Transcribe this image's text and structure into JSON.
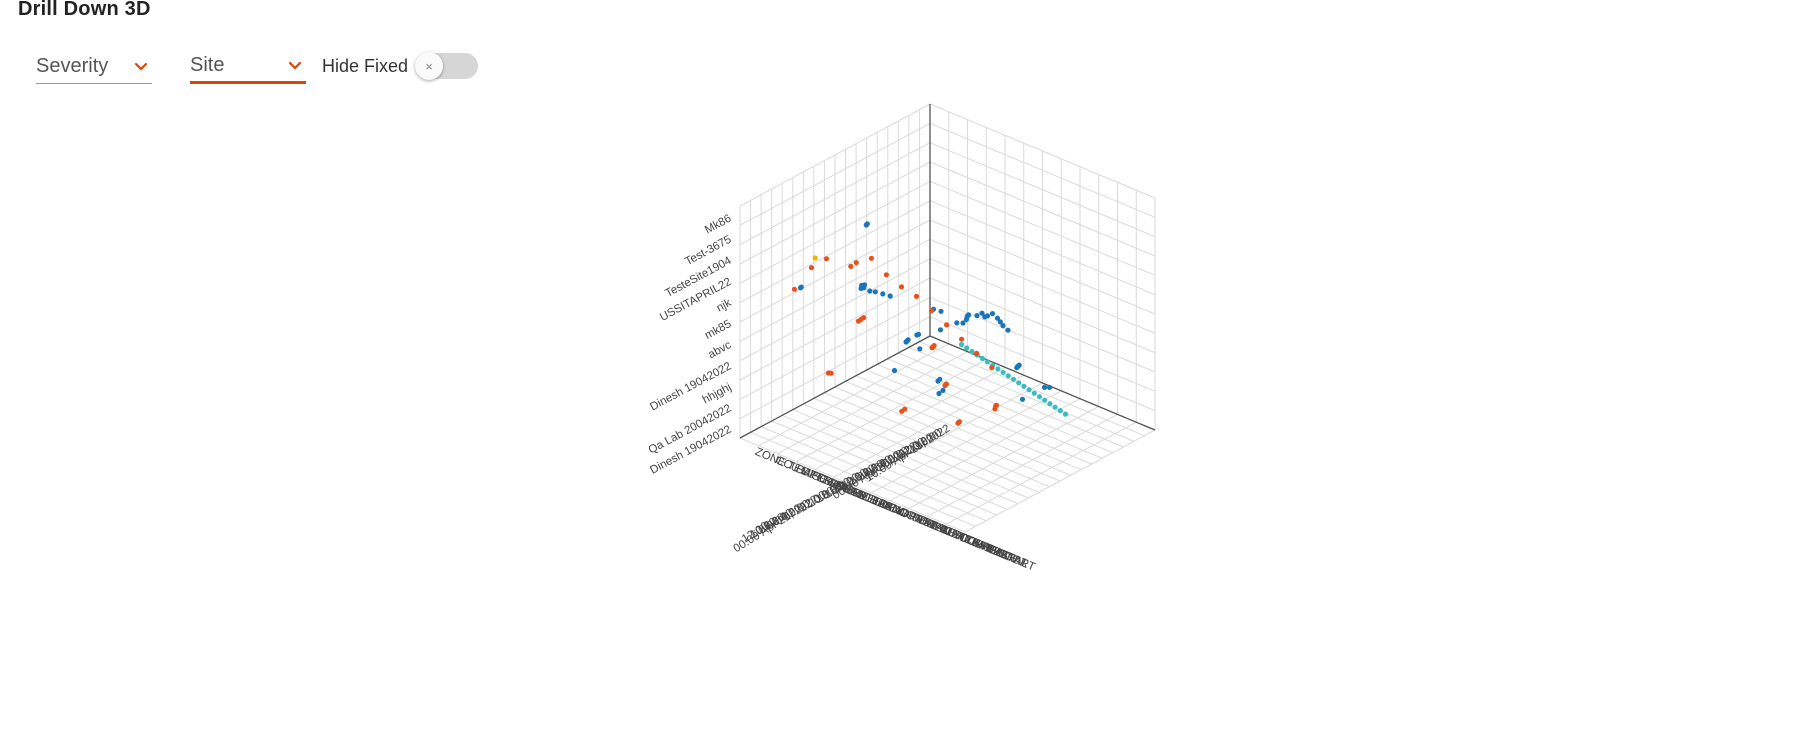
{
  "page": {
    "title": "Drill Down 3D"
  },
  "filters": {
    "severity_label": "Severity",
    "site_label": "Site",
    "hide_fixed_label": "Hide Fixed",
    "toggle_off_glyph": "×",
    "hide_fixed_on": false
  },
  "colors": {
    "accent": "#e24301",
    "blue": "#1a75bb",
    "orange": "#e8521a",
    "teal": "#3bbdc0",
    "yellow": "#f0b400",
    "grid": "#d9d9d9"
  },
  "chart_data": {
    "type": "scatter3d",
    "title": "",
    "sites": [
      "Dinesh 19042022",
      "Qa Lab 20042022",
      "hhjghj",
      "Dinesh 19042022",
      "abvc",
      "mk85",
      "njk",
      "USSITAPRIL22",
      "TesteSite1904",
      "Test-3675",
      "Mk86"
    ],
    "times": [
      "16:00 Apr 19, 2022",
      "18:00",
      "20:00",
      "22:00",
      "00:00 Apr 20, 2022",
      "02:00",
      "04:00",
      "06:00",
      "08:00",
      "10:00",
      "12:00",
      "14:00",
      "16:00",
      "18:00",
      "20:00",
      "22:00",
      "00:00 Apr 21, 2022",
      "02:00",
      "04:00",
      "06:00",
      "08:00",
      "10:00",
      "12:00"
    ],
    "alerts": [
      "CCU RESTART",
      "DEVICE REBOOT",
      "DEVICE LOW SIGNAL",
      "CONSTANT CUR TEMP",
      "ABNORMAL CUR TEMP",
      "BUILDING TEMP LIMIT BREACH",
      "DEVICE DEAD",
      "CM DEAD",
      "BATTERY LEVEL LOW FATAL",
      "CCU DISCONNECTED",
      "ZONE TEMPERATURE DEAD"
    ],
    "series": [
      {
        "color": "teal",
        "points": [
          [
            0.14,
            0.0,
            0.02
          ],
          [
            0.18,
            0.02,
            0.03
          ],
          [
            0.22,
            0.04,
            0.04
          ],
          [
            0.26,
            0.06,
            0.05
          ],
          [
            0.3,
            0.08,
            0.06
          ],
          [
            0.34,
            0.1,
            0.07
          ],
          [
            0.38,
            0.12,
            0.08
          ],
          [
            0.42,
            0.14,
            0.09
          ],
          [
            0.46,
            0.16,
            0.1
          ],
          [
            0.5,
            0.18,
            0.11
          ],
          [
            0.54,
            0.2,
            0.12
          ],
          [
            0.58,
            0.22,
            0.13
          ],
          [
            0.62,
            0.24,
            0.14
          ],
          [
            0.66,
            0.26,
            0.15
          ],
          [
            0.7,
            0.28,
            0.16
          ],
          [
            0.74,
            0.3,
            0.17
          ],
          [
            0.78,
            0.32,
            0.18
          ],
          [
            0.82,
            0.34,
            0.19
          ],
          [
            0.86,
            0.36,
            0.2
          ],
          [
            0.9,
            0.38,
            0.21
          ],
          [
            0.94,
            0.4,
            0.22
          ]
        ]
      },
      {
        "color": "blue",
        "points": [
          [
            0.05,
            0.12,
            0.08
          ],
          [
            0.06,
            0.14,
            0.09
          ],
          [
            0.1,
            0.1,
            0.2
          ],
          [
            0.15,
            0.12,
            0.22
          ],
          [
            0.18,
            0.4,
            0.1
          ],
          [
            0.25,
            0.35,
            0.2
          ],
          [
            0.3,
            0.3,
            0.28
          ],
          [
            0.33,
            0.25,
            0.3
          ],
          [
            0.4,
            0.3,
            0.35
          ],
          [
            0.42,
            0.45,
            0.12
          ],
          [
            0.48,
            0.5,
            0.18
          ],
          [
            0.5,
            0.55,
            0.25
          ],
          [
            0.55,
            0.6,
            0.3
          ],
          [
            0.58,
            0.2,
            0.05
          ],
          [
            0.6,
            0.3,
            0.4
          ],
          [
            0.62,
            0.35,
            0.45
          ],
          [
            0.65,
            0.4,
            0.5
          ],
          [
            0.68,
            0.45,
            0.55
          ],
          [
            0.7,
            0.5,
            0.6
          ],
          [
            0.72,
            0.55,
            0.62
          ],
          [
            0.75,
            0.6,
            0.65
          ],
          [
            0.78,
            0.65,
            0.7
          ],
          [
            0.8,
            0.7,
            0.72
          ],
          [
            0.2,
            0.6,
            0.55
          ],
          [
            0.22,
            0.62,
            0.58
          ],
          [
            0.25,
            0.65,
            0.6
          ],
          [
            0.28,
            0.68,
            0.62
          ],
          [
            0.3,
            0.7,
            0.65
          ],
          [
            0.1,
            0.8,
            0.6
          ],
          [
            0.12,
            0.82,
            0.62
          ],
          [
            0.45,
            0.85,
            0.75
          ],
          [
            0.5,
            0.88,
            0.78
          ],
          [
            0.55,
            0.9,
            0.8
          ],
          [
            0.6,
            0.92,
            0.82
          ],
          [
            0.35,
            0.75,
            0.95
          ],
          [
            0.38,
            0.78,
            0.98
          ],
          [
            0.85,
            0.55,
            0.45
          ],
          [
            0.88,
            0.58,
            0.48
          ],
          [
            0.9,
            0.6,
            0.5
          ],
          [
            0.92,
            0.62,
            0.52
          ],
          [
            0.7,
            0.2,
            0.15
          ],
          [
            0.72,
            0.25,
            0.18
          ],
          [
            0.5,
            0.4,
            0.45
          ],
          [
            0.52,
            0.42,
            0.48
          ],
          [
            0.54,
            0.44,
            0.5
          ],
          [
            0.56,
            0.46,
            0.52
          ],
          [
            0.4,
            0.6,
            0.4
          ],
          [
            0.42,
            0.62,
            0.42
          ],
          [
            0.44,
            0.64,
            0.44
          ],
          [
            0.46,
            0.66,
            0.46
          ]
        ]
      },
      {
        "color": "orange",
        "points": [
          [
            0.2,
            0.95,
            0.7
          ],
          [
            0.25,
            0.92,
            0.8
          ],
          [
            0.3,
            0.9,
            0.85
          ],
          [
            0.45,
            0.95,
            0.9
          ],
          [
            0.5,
            0.98,
            0.95
          ],
          [
            0.55,
            0.96,
            0.98
          ],
          [
            0.6,
            0.94,
            0.92
          ],
          [
            0.65,
            0.92,
            0.88
          ],
          [
            0.7,
            0.9,
            0.85
          ],
          [
            0.75,
            0.88,
            0.8
          ],
          [
            0.8,
            0.86,
            0.75
          ],
          [
            0.85,
            0.84,
            0.7
          ],
          [
            0.9,
            0.82,
            0.65
          ],
          [
            0.95,
            0.8,
            0.6
          ],
          [
            0.4,
            0.85,
            0.6
          ],
          [
            0.42,
            0.86,
            0.62
          ],
          [
            0.44,
            0.87,
            0.64
          ],
          [
            0.6,
            0.7,
            0.5
          ],
          [
            0.62,
            0.72,
            0.52
          ],
          [
            0.64,
            0.74,
            0.54
          ],
          [
            0.66,
            0.76,
            0.56
          ],
          [
            0.7,
            0.75,
            0.4
          ],
          [
            0.72,
            0.77,
            0.42
          ],
          [
            0.74,
            0.79,
            0.44
          ],
          [
            0.8,
            0.8,
            0.3
          ],
          [
            0.82,
            0.82,
            0.32
          ],
          [
            0.84,
            0.84,
            0.34
          ],
          [
            0.88,
            0.7,
            0.35
          ],
          [
            0.9,
            0.72,
            0.38
          ],
          [
            0.92,
            0.74,
            0.4
          ],
          [
            0.55,
            0.8,
            0.25
          ],
          [
            0.58,
            0.82,
            0.28
          ],
          [
            0.35,
            0.95,
            0.4
          ],
          [
            0.38,
            0.97,
            0.42
          ]
        ]
      },
      {
        "color": "yellow",
        "points": [
          [
            0.3,
            0.96,
            0.88
          ]
        ]
      }
    ]
  }
}
